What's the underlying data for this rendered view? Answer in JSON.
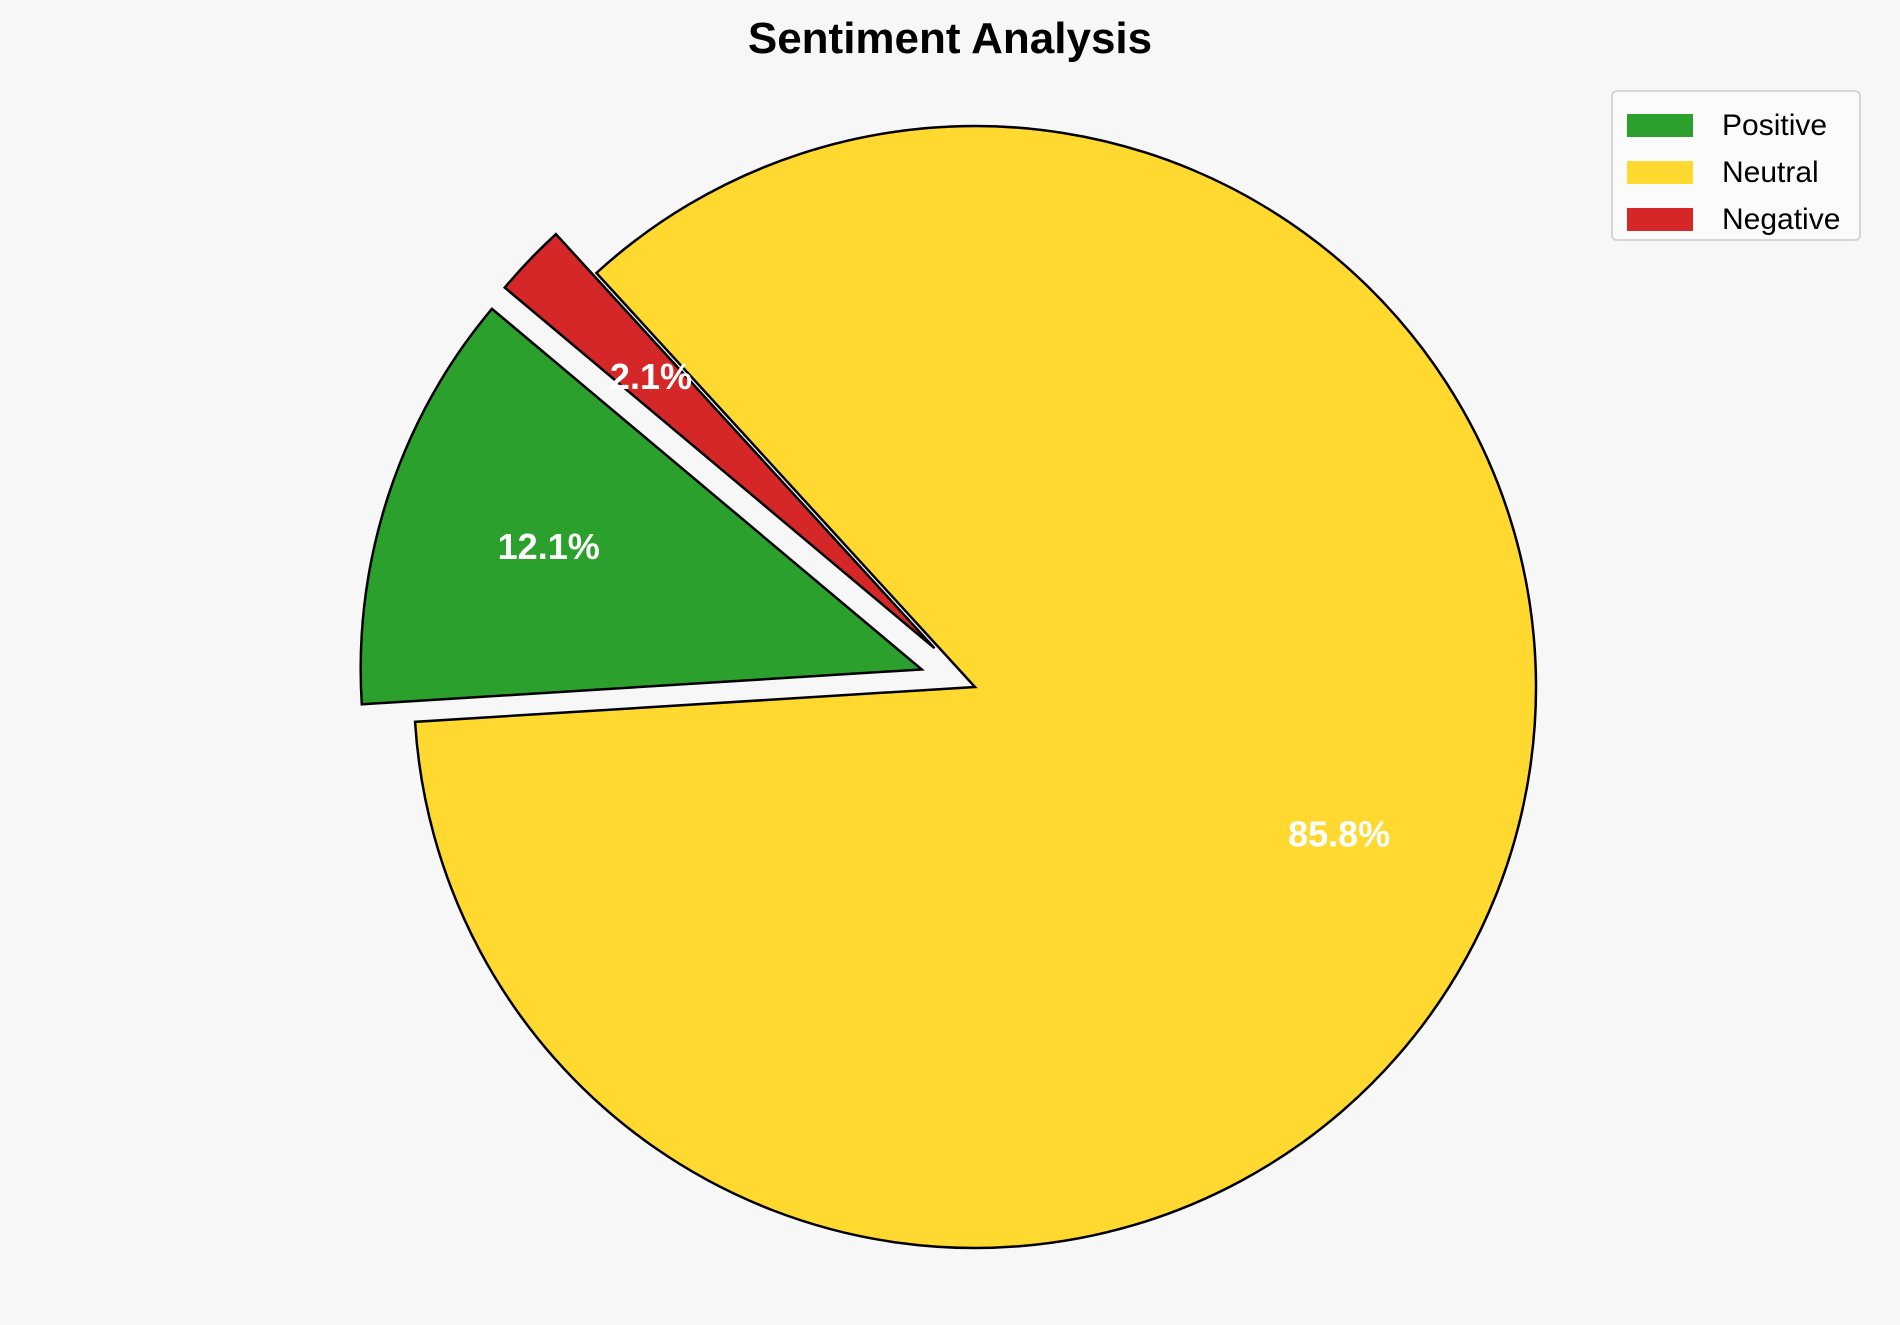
{
  "chart_data": {
    "type": "pie",
    "title": "Sentiment Analysis",
    "categories": [
      "Positive",
      "Neutral",
      "Negative"
    ],
    "values": [
      12.1,
      85.8,
      2.1
    ],
    "labels": [
      "12.1%",
      "85.8%",
      "2.1%"
    ],
    "colors": [
      "#2ca02c",
      "#ffd92f",
      "#d62728"
    ],
    "explode": [
      0.1,
      0,
      0.1
    ],
    "start_angle": 140,
    "legend_position": "top-right"
  }
}
